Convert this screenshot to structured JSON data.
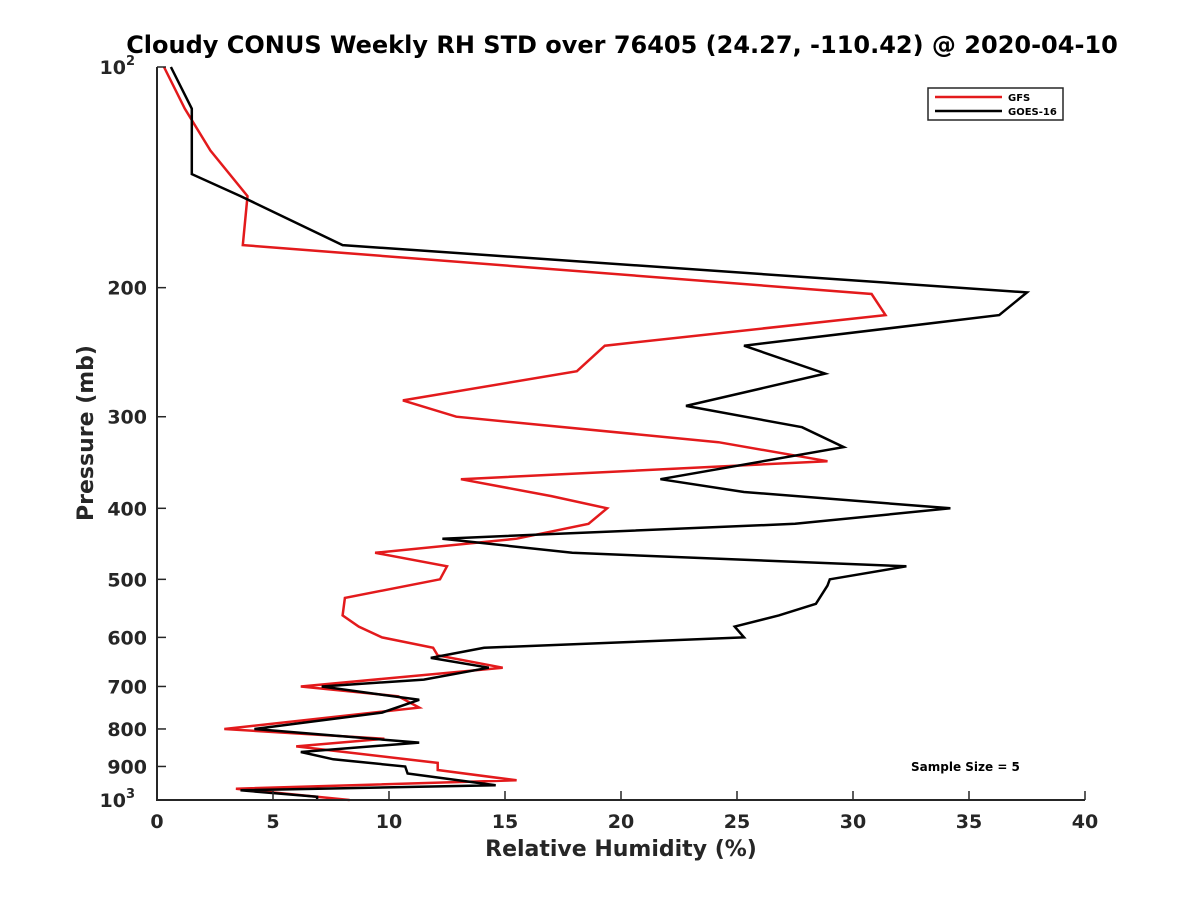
{
  "chart_data": {
    "type": "line",
    "title": "Cloudy CONUS Weekly RH STD over 76405 (24.27, -110.42) @ 2020-04-10",
    "xlabel": "Relative Humidity (%)",
    "ylabel": "Pressure (mb)",
    "xlim": [
      0,
      40
    ],
    "ylim": [
      100,
      1000
    ],
    "y_scale": "log",
    "y_reversed": true,
    "x_ticks": [
      0,
      5,
      10,
      15,
      20,
      25,
      30,
      35,
      40
    ],
    "y_ticks": [
      {
        "value": 100,
        "label": "10",
        "exp": "2"
      },
      {
        "value": 200,
        "label": "200"
      },
      {
        "value": 300,
        "label": "300"
      },
      {
        "value": 400,
        "label": "400"
      },
      {
        "value": 500,
        "label": "500"
      },
      {
        "value": 600,
        "label": "600"
      },
      {
        "value": 700,
        "label": "700"
      },
      {
        "value": 800,
        "label": "800"
      },
      {
        "value": 900,
        "label": "900"
      },
      {
        "value": 1000,
        "label": "10",
        "exp": "3"
      }
    ],
    "grid": false,
    "legend": {
      "placement": "top-right"
    },
    "annotation": "Sample Size = 5",
    "series": [
      {
        "name": "GFS",
        "color": "#e31a1c",
        "points": [
          [
            0.3,
            100
          ],
          [
            1.2,
            114
          ],
          [
            2.3,
            130
          ],
          [
            3.9,
            150
          ],
          [
            3.7,
            175
          ],
          [
            30.8,
            204
          ],
          [
            31.4,
            218
          ],
          [
            19.3,
            240
          ],
          [
            18.1,
            260
          ],
          [
            10.6,
            285
          ],
          [
            12.9,
            300
          ],
          [
            24.2,
            325
          ],
          [
            28.9,
            345
          ],
          [
            13.1,
            365
          ],
          [
            17.0,
            385
          ],
          [
            19.4,
            400
          ],
          [
            18.6,
            420
          ],
          [
            15.5,
            440
          ],
          [
            9.4,
            460
          ],
          [
            12.5,
            480
          ],
          [
            12.2,
            500
          ],
          [
            8.1,
            530
          ],
          [
            8.0,
            560
          ],
          [
            8.7,
            580
          ],
          [
            9.7,
            600
          ],
          [
            11.9,
            620
          ],
          [
            12.1,
            635
          ],
          [
            14.9,
            660
          ],
          [
            6.2,
            700
          ],
          [
            10.4,
            722
          ],
          [
            11.3,
            748
          ],
          [
            2.9,
            800
          ],
          [
            9.8,
            825
          ],
          [
            6.0,
            845
          ],
          [
            12.1,
            890
          ],
          [
            12.1,
            910
          ],
          [
            15.5,
            940
          ],
          [
            3.4,
            965
          ],
          [
            8.3,
            1000
          ]
        ]
      },
      {
        "name": "GOES-16",
        "color": "#000000",
        "points": [
          [
            0.6,
            100
          ],
          [
            1.5,
            114
          ],
          [
            1.5,
            120
          ],
          [
            1.5,
            140
          ],
          [
            3.6,
            150
          ],
          [
            8.0,
            175
          ],
          [
            37.5,
            203
          ],
          [
            36.3,
            218
          ],
          [
            25.3,
            240
          ],
          [
            28.8,
            262
          ],
          [
            22.8,
            290
          ],
          [
            27.8,
            310
          ],
          [
            29.6,
            330
          ],
          [
            21.7,
            365
          ],
          [
            25.3,
            380
          ],
          [
            34.2,
            400
          ],
          [
            27.5,
            420
          ],
          [
            12.3,
            440
          ],
          [
            17.9,
            460
          ],
          [
            32.3,
            480
          ],
          [
            29.0,
            500
          ],
          [
            28.9,
            510
          ],
          [
            28.4,
            540
          ],
          [
            26.8,
            560
          ],
          [
            24.9,
            580
          ],
          [
            25.3,
            600
          ],
          [
            14.1,
            620
          ],
          [
            11.8,
            640
          ],
          [
            14.3,
            660
          ],
          [
            11.5,
            685
          ],
          [
            7.1,
            700
          ],
          [
            11.3,
            730
          ],
          [
            9.7,
            760
          ],
          [
            4.2,
            800
          ],
          [
            11.3,
            835
          ],
          [
            6.2,
            860
          ],
          [
            7.6,
            880
          ],
          [
            10.7,
            900
          ],
          [
            10.8,
            920
          ],
          [
            14.6,
            955
          ],
          [
            3.6,
            970
          ],
          [
            6.9,
            990
          ],
          [
            6.9,
            1000
          ]
        ]
      }
    ]
  }
}
